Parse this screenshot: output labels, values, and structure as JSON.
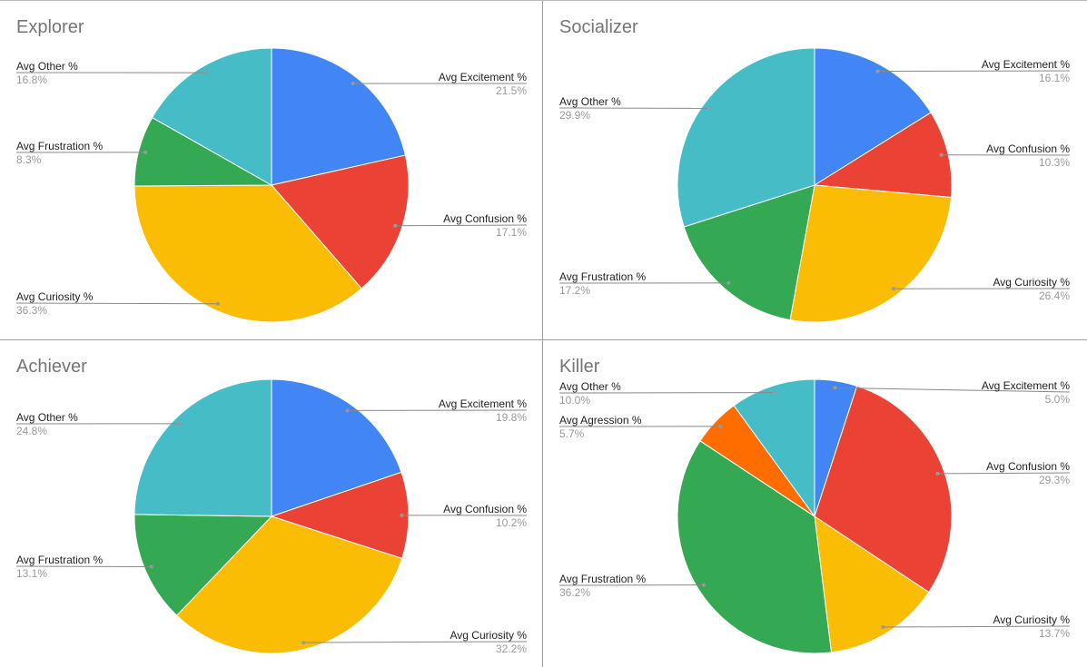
{
  "chart_data": [
    {
      "type": "pie",
      "title": "Explorer",
      "labels": [
        "Avg Excitement %",
        "Avg Confusion %",
        "Avg Curiosity %",
        "Avg Frustration %",
        "Avg Other %"
      ],
      "values": [
        21.5,
        17.1,
        36.3,
        8.3,
        16.8
      ],
      "display": [
        "21.5%",
        "17.1%",
        "36.3%",
        "8.3%",
        "16.8%"
      ],
      "colors": [
        "#4285f4",
        "#ea4335",
        "#fbbc04",
        "#34a853",
        "#46bdc6"
      ]
    },
    {
      "type": "pie",
      "title": "Socializer",
      "labels": [
        "Avg Excitement %",
        "Avg Confusion %",
        "Avg Curiosity %",
        "Avg Frustration %",
        "Avg Other %"
      ],
      "values": [
        16.1,
        10.3,
        26.4,
        17.2,
        29.9
      ],
      "display": [
        "16.1%",
        "10.3%",
        "26.4%",
        "17.2%",
        "29.9%"
      ],
      "colors": [
        "#4285f4",
        "#ea4335",
        "#fbbc04",
        "#34a853",
        "#46bdc6"
      ]
    },
    {
      "type": "pie",
      "title": "Achiever",
      "labels": [
        "Avg Excitement %",
        "Avg Confusion %",
        "Avg Curiosity %",
        "Avg Frustration %",
        "Avg Other %"
      ],
      "values": [
        19.8,
        10.2,
        32.2,
        13.1,
        24.8
      ],
      "display": [
        "19.8%",
        "10.2%",
        "32.2%",
        "13.1%",
        "24.8%"
      ],
      "colors": [
        "#4285f4",
        "#ea4335",
        "#fbbc04",
        "#34a853",
        "#46bdc6"
      ]
    },
    {
      "type": "pie",
      "title": "Killer",
      "labels": [
        "Avg Excitement %",
        "Avg Confusion %",
        "Avg Curiosity %",
        "Avg Frustration %",
        "Avg Agression %",
        "Avg Other %"
      ],
      "values": [
        5.0,
        29.3,
        13.7,
        36.2,
        5.7,
        10.0
      ],
      "display": [
        "5.0%",
        "29.3%",
        "13.7%",
        "36.2%",
        "5.7%",
        "10.0%"
      ],
      "colors": [
        "#4285f4",
        "#ea4335",
        "#fbbc04",
        "#34a853",
        "#ff6d01",
        "#46bdc6"
      ]
    }
  ]
}
